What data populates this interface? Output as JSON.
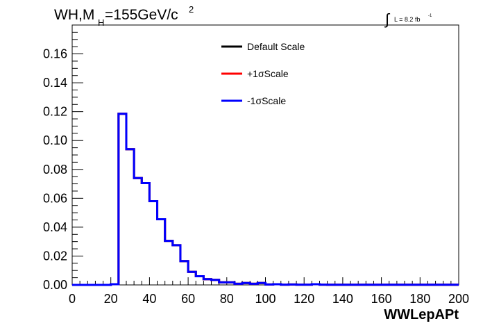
{
  "header": {
    "title_main": "WH,M",
    "title_sub": "H",
    "title_rest": "=155GeV/c",
    "title_sup": "2",
    "lumi_integral": "∫",
    "lumi_text": "L = 8.2 fb",
    "lumi_sup": "-1"
  },
  "chart_data": {
    "type": "line",
    "xlabel": "WWLepAPt",
    "ylabel": "",
    "xlim": [
      0,
      200
    ],
    "ylim": [
      0,
      0.18
    ],
    "x_ticks": [
      0,
      20,
      40,
      60,
      80,
      100,
      120,
      140,
      160,
      180,
      200
    ],
    "x_tick_labels": [
      "0",
      "20",
      "40",
      "60",
      "80",
      "100",
      "120",
      "140",
      "160",
      "180",
      "200"
    ],
    "y_ticks": [
      0,
      0.02,
      0.04,
      0.06,
      0.08,
      0.1,
      0.12,
      0.14,
      0.16
    ],
    "y_tick_labels": [
      "0.00",
      "0.02",
      "0.04",
      "0.06",
      "0.08",
      "0.10",
      "0.12",
      "0.14",
      "0.16"
    ],
    "bin_width": 4,
    "bin_edges_start": 0,
    "legend_position": "top-center",
    "grid": false,
    "series": [
      {
        "name": "Default Scale",
        "color": "#000000",
        "values": [
          0,
          0,
          0,
          0,
          0,
          0.0005,
          0.1185,
          0.094,
          0.074,
          0.0705,
          0.058,
          0.0455,
          0.0305,
          0.0275,
          0.0165,
          0.009,
          0.006,
          0.004,
          0.0035,
          0.0018,
          0.0018,
          0.0008,
          0.0013,
          0.0008,
          0.0013,
          0.0003,
          0.0005,
          0.0002,
          0.0003,
          0.0002,
          0.0002,
          0.0005,
          0.0002,
          0.0001,
          0.0001,
          0.0001,
          0.0001,
          0.0001,
          0.0001,
          0.0001,
          0.0001,
          0.0001,
          0.0001,
          0.0001,
          0.0001,
          0.0001,
          0.0001,
          0.0001,
          0.0001,
          0.0001
        ]
      },
      {
        "name": "+1σScale",
        "color": "#ff0000",
        "values": [
          0,
          0,
          0,
          0,
          0,
          0.0005,
          0.1185,
          0.094,
          0.074,
          0.0705,
          0.058,
          0.0455,
          0.0305,
          0.0275,
          0.0165,
          0.009,
          0.006,
          0.004,
          0.0035,
          0.0018,
          0.0018,
          0.0008,
          0.0013,
          0.0008,
          0.0013,
          0.0003,
          0.0005,
          0.0002,
          0.0003,
          0.0002,
          0.0002,
          0.0005,
          0.0002,
          0.0001,
          0.0001,
          0.0001,
          0.0001,
          0.0001,
          0.0001,
          0.0001,
          0.0001,
          0.0001,
          0.0001,
          0.0001,
          0.0001,
          0.0001,
          0.0001,
          0.0001,
          0.0001,
          0.0001
        ]
      },
      {
        "name": "-1σScale",
        "color": "#0000ff",
        "values": [
          0,
          0,
          0,
          0,
          0,
          0.0005,
          0.1185,
          0.094,
          0.074,
          0.0705,
          0.058,
          0.0455,
          0.0305,
          0.0275,
          0.0165,
          0.009,
          0.006,
          0.004,
          0.0035,
          0.0018,
          0.0018,
          0.0008,
          0.0013,
          0.0008,
          0.0013,
          0.0003,
          0.0005,
          0.0002,
          0.0003,
          0.0002,
          0.0002,
          0.0005,
          0.0002,
          0.0001,
          0.0001,
          0.0001,
          0.0001,
          0.0001,
          0.0001,
          0.0001,
          0.0001,
          0.0001,
          0.0001,
          0.0001,
          0.0001,
          0.0001,
          0.0001,
          0.0001,
          0.0001,
          0.0001
        ]
      }
    ]
  }
}
